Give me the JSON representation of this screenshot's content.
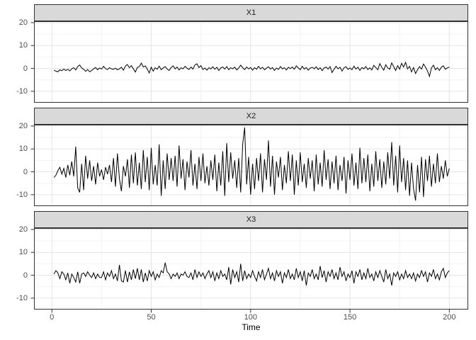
{
  "style": {
    "background": "#FFFFFF",
    "panel_background": "#FFFFFF",
    "panel_border": "#333333",
    "strip_fill": "#D9D9D9",
    "strip_border": "#333333",
    "strip_text_color": "#1A1A1A",
    "grid_major": "#E4E4E4",
    "grid_minor": "#F2F2F2",
    "line_color": "#000000",
    "tick_color": "#333333",
    "tick_label_color": "#4D4D4D",
    "axis_title_color": "#000000"
  },
  "chart_data": {
    "type": "line",
    "title": "",
    "xlabel": "Time",
    "ylabel": "",
    "legend": "none",
    "grid": true,
    "facets": [
      "X1",
      "X2",
      "X3"
    ],
    "x_ticks": [
      0,
      50,
      100,
      150,
      200
    ],
    "x_minor_ticks": [
      25,
      75,
      125,
      175
    ],
    "y_ticks": [
      20,
      10,
      0,
      -10
    ],
    "y_minor_ticks": [
      15,
      5,
      -5
    ],
    "xlim": [
      -9,
      209.5
    ],
    "ylim": [
      -15,
      20.6
    ],
    "x_start": 1,
    "x_step": 1,
    "n_points": 200,
    "series": [
      {
        "name": "X1",
        "values": [
          -0.8,
          -1.2,
          -1.5,
          -0.6,
          -1.0,
          -0.3,
          -0.9,
          -0.4,
          -1.1,
          -0.2,
          0.3,
          -0.7,
          0.8,
          1.5,
          0.2,
          -0.4,
          -1.3,
          -0.5,
          -1.5,
          -0.9,
          -0.2,
          0.4,
          -0.6,
          0.2,
          -0.3,
          0.9,
          -0.1,
          -0.5,
          0.3,
          -0.2,
          -0.4,
          0.1,
          -0.6,
          -0.2,
          0.5,
          -0.8,
          1.0,
          1.7,
          0.3,
          1.2,
          -0.2,
          -1.6,
          0.4,
          0.8,
          2.3,
          0.6,
          1.1,
          -0.3,
          -2.0,
          0.5,
          -1.2,
          0.3,
          -0.4,
          1.0,
          -0.6,
          0.2,
          0.8,
          -0.3,
          -0.9,
          0.4,
          1.1,
          -0.2,
          0.6,
          -0.7,
          0.3,
          -0.2,
          0.9,
          0.1,
          -0.5,
          0.6,
          -0.3,
          1.5,
          2.0,
          0.4,
          1.2,
          -0.5,
          0.2,
          -0.8,
          0.3,
          -0.2,
          0.7,
          -0.4,
          0.5,
          -0.9,
          0.2,
          0.6,
          -0.3,
          0.8,
          -0.6,
          0.3,
          -0.2,
          0.5,
          -0.7,
          0.2,
          1.4,
          0.3,
          -0.5,
          0.6,
          -0.2,
          0.4,
          -0.8,
          0.3,
          -0.4,
          0.9,
          -0.2,
          0.5,
          -0.6,
          0.1,
          0.7,
          -0.3,
          0.4,
          -0.9,
          0.2,
          -0.5,
          0.8,
          -0.2,
          0.3,
          -0.7,
          0.5,
          -0.1,
          0.6,
          -0.4,
          1.1,
          0.2,
          -0.6,
          0.9,
          -0.3,
          0.4,
          -0.8,
          0.1,
          0.5,
          -0.2,
          0.7,
          -0.5,
          0.3,
          -1.0,
          0.2,
          0.6,
          -0.3,
          0.8,
          -1.8,
          -0.4,
          0.9,
          -0.2,
          0.5,
          -1.2,
          0.3,
          0.7,
          -0.4,
          0.2,
          -0.6,
          1.0,
          -0.3,
          0.5,
          -0.9,
          0.4,
          -0.2,
          0.8,
          -0.5,
          0.3,
          -0.7,
          1.3,
          0.4,
          -0.6,
          2.1,
          0.5,
          -0.8,
          1.6,
          0.2,
          -0.4,
          2.4,
          0.8,
          -0.9,
          1.2,
          -0.3,
          2.2,
          0.6,
          2.6,
          -0.2,
          0.9,
          -1.5,
          0.4,
          -2.2,
          -0.6,
          0.8,
          -0.3,
          1.9,
          0.5,
          -1.1,
          -3.5,
          0.2,
          1.4,
          -0.6,
          0.3,
          -0.9,
          0.5,
          1.1,
          -0.4,
          0.2,
          0.6
        ]
      },
      {
        "name": "X2",
        "values": [
          -2.5,
          -1.5,
          0.5,
          2.0,
          -1.0,
          1.5,
          -2.5,
          3.0,
          -1.5,
          4.5,
          -2.0,
          11.0,
          -7.0,
          -9.0,
          3.5,
          -8.0,
          7.0,
          -3.0,
          5.0,
          -4.0,
          2.5,
          -5.5,
          4.0,
          -2.0,
          1.0,
          -3.5,
          2.0,
          -1.0,
          3.0,
          -4.5,
          6.0,
          -6.5,
          8.0,
          -3.0,
          -8.5,
          2.5,
          -2.0,
          5.5,
          -7.0,
          7.5,
          -5.0,
          8.5,
          -6.0,
          4.0,
          -7.5,
          9.5,
          -4.5,
          6.5,
          -8.0,
          10.5,
          -5.5,
          3.0,
          -6.0,
          12.0,
          -10.5,
          5.0,
          -7.5,
          8.0,
          -3.5,
          6.0,
          -4.0,
          7.0,
          -6.5,
          11.5,
          -3.0,
          5.5,
          -8.0,
          4.5,
          -2.5,
          9.5,
          -6.0,
          3.5,
          -7.5,
          6.5,
          -4.0,
          8.0,
          -5.0,
          2.5,
          -6.0,
          5.0,
          -3.5,
          7.5,
          -8.5,
          4.0,
          -6.0,
          9.0,
          -10.5,
          12.5,
          -4.5,
          8.5,
          -3.0,
          5.0,
          -7.0,
          6.0,
          -9.0,
          12.0,
          19.4,
          -5.5,
          6.5,
          -10.0,
          3.5,
          -7.5,
          6.0,
          -4.0,
          8.0,
          -9.0,
          5.5,
          -3.5,
          13.7,
          -6.5,
          7.0,
          -10.0,
          4.5,
          -2.5,
          6.5,
          -8.0,
          3.0,
          -5.0,
          9.0,
          -4.0,
          7.5,
          -10.0,
          5.0,
          -6.0,
          8.5,
          -4.5,
          3.5,
          -7.0,
          6.0,
          -3.0,
          5.0,
          -8.5,
          7.5,
          -5.5,
          4.0,
          -6.5,
          9.5,
          -3.5,
          5.5,
          -7.5,
          4.5,
          -5.0,
          7.0,
          -8.0,
          3.0,
          -4.0,
          6.5,
          -9.5,
          5.0,
          -3.5,
          8.0,
          -6.0,
          4.0,
          -7.5,
          10.5,
          -5.0,
          6.0,
          -4.5,
          7.5,
          -8.5,
          3.5,
          -6.5,
          9.0,
          -4.0,
          5.5,
          -7.0,
          4.5,
          -5.5,
          8.5,
          -3.0,
          13.0,
          -6.0,
          7.0,
          -9.0,
          11.5,
          -4.5,
          6.0,
          -8.0,
          5.0,
          -10.5,
          4.0,
          -7.5,
          -12.6,
          3.0,
          -9.0,
          6.5,
          -11.0,
          5.5,
          -4.0,
          7.0,
          -6.5,
          3.5,
          -5.0,
          8.0,
          -4.5,
          2.5,
          -3.0,
          5.0,
          -2.0,
          1.5
        ]
      },
      {
        "name": "X3",
        "values": [
          0.5,
          2.0,
          1.0,
          -1.5,
          1.5,
          0.5,
          -2.0,
          1.0,
          -3.5,
          0.5,
          -1.0,
          -3.0,
          1.5,
          -3.5,
          0.5,
          1.0,
          -0.5,
          1.5,
          0.0,
          -1.0,
          1.0,
          -1.5,
          0.5,
          -1.0,
          -1.0,
          1.5,
          -2.0,
          1.0,
          -0.5,
          2.0,
          -1.5,
          0.5,
          -2.5,
          4.5,
          -2.5,
          -3.0,
          2.0,
          -3.0,
          1.5,
          -2.0,
          2.5,
          -1.5,
          3.0,
          -2.0,
          2.5,
          -3.0,
          1.0,
          -2.5,
          2.0,
          -0.5,
          1.5,
          -2.0,
          0.5,
          -1.0,
          2.0,
          1.0,
          5.5,
          1.5,
          0.5,
          -1.5,
          0.5,
          -0.5,
          1.0,
          -1.5,
          0.5,
          0.0,
          1.5,
          -0.5,
          -1.0,
          1.0,
          -2.0,
          2.5,
          -1.0,
          1.5,
          -0.5,
          1.0,
          -1.5,
          0.5,
          2.0,
          -1.0,
          1.5,
          -2.5,
          1.0,
          -1.5,
          2.0,
          -0.5,
          0.5,
          -2.0,
          3.5,
          -4.0,
          2.5,
          -1.0,
          1.5,
          -3.0,
          5.0,
          -2.5,
          2.0,
          -1.5,
          0.5,
          -1.0,
          2.0,
          -0.5,
          -2.5,
          1.5,
          -1.0,
          2.5,
          -2.0,
          0.5,
          3.0,
          -1.5,
          1.0,
          -2.5,
          2.0,
          -0.5,
          1.5,
          -3.5,
          1.0,
          -1.0,
          2.5,
          -1.5,
          0.5,
          -2.0,
          3.0,
          -1.0,
          1.5,
          -2.5,
          2.0,
          -4.5,
          1.0,
          -0.5,
          2.5,
          -1.5,
          0.5,
          -2.0,
          4.0,
          -1.0,
          2.0,
          -3.0,
          1.5,
          -0.5,
          2.5,
          -1.5,
          1.0,
          -2.0,
          3.5,
          -0.5,
          1.5,
          -2.5,
          0.5,
          -1.0,
          2.0,
          -3.5,
          1.5,
          -0.5,
          2.5,
          -2.0,
          1.0,
          -1.5,
          3.0,
          -1.0,
          0.5,
          -2.5,
          1.5,
          -1.0,
          2.0,
          -0.5,
          -3.0,
          2.5,
          -1.5,
          0.5,
          -4.5,
          1.0,
          -0.5,
          1.5,
          -2.0,
          0.5,
          -1.5,
          2.0,
          -1.0,
          0.5,
          -1.5,
          1.0,
          -2.5,
          0.5,
          -1.0,
          2.0,
          -0.5,
          1.5,
          -3.0,
          1.0,
          -0.5,
          2.5,
          -1.5,
          0.5,
          -2.0,
          1.5,
          3.0,
          -1.0,
          1.0,
          2.0
        ]
      }
    ]
  }
}
